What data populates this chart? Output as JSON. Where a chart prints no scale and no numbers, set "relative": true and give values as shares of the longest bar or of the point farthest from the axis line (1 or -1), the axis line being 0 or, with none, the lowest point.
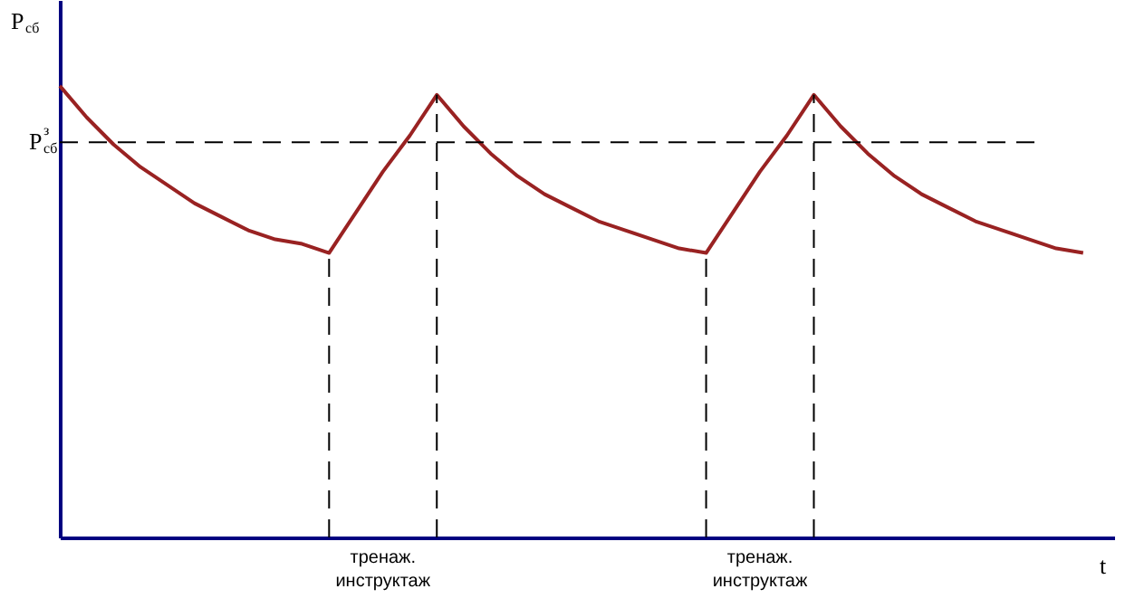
{
  "chart_data": {
    "type": "line",
    "relative": true,
    "xlabel": "t",
    "ylabel": "P$_{сб}$",
    "categories": [
      null,
      null,
      null,
      null,
      null,
      null,
      null,
      null,
      null,
      null,
      null,
      null,
      null,
      null,
      null,
      null,
      null,
      null,
      null,
      null,
      null,
      null,
      null,
      null,
      null,
      null,
      null,
      null,
      null,
      null,
      null,
      null,
      null,
      null,
      null,
      null,
      null,
      null,
      null
    ],
    "tick_labels": false,
    "grid": false,
    "marker": "none",
    "line_style": "solid",
    "series": [
      {
        "color": "#992222",
        "values": [
          1.0,
          0.93,
          0.87,
          0.82,
          0.78,
          0.74,
          0.71,
          0.68,
          0.66,
          0.65,
          0.63,
          0.72,
          0.81,
          0.89,
          0.98,
          0.91,
          0.85,
          0.8,
          0.76,
          0.73,
          0.7,
          0.68,
          0.66,
          0.64,
          0.63,
          0.72,
          0.81,
          0.89,
          0.98,
          0.91,
          0.85,
          0.8,
          0.76,
          0.73,
          0.7,
          0.68,
          0.66,
          0.64,
          0.63
        ]
      }
    ],
    "ref_lines": [
      {
        "axis": "y",
        "value": 0.875,
        "label": "P$^{з}$$_{сб}$",
        "color": "#000000",
        "line_style": "dashed"
      }
    ],
    "annotations": [
      "тренаж.\nинструктаж",
      "тренаж.\nинструктаж"
    ]
  }
}
